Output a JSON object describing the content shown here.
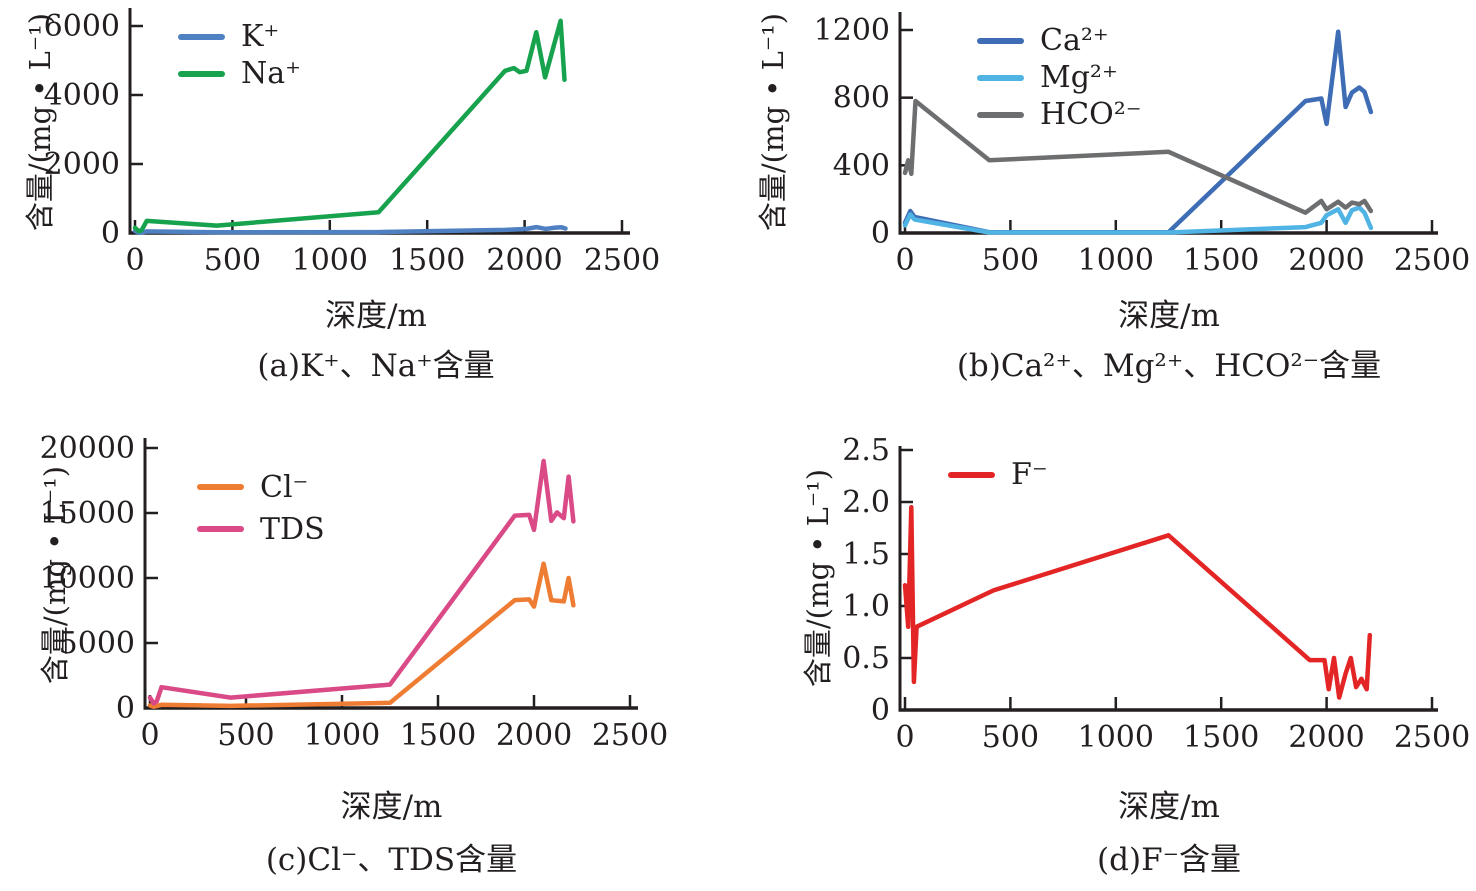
{
  "figure": {
    "background": "#ffffff",
    "axis_color": "#231f20",
    "description": "Four line charts of groundwater ion content versus depth"
  },
  "chart_data": [
    {
      "id": "a",
      "type": "line",
      "caption": "(a)K⁺、Na⁺含量",
      "xlabel": "深度/m",
      "ylabel": "含量/(mg • L⁻¹)",
      "xlim": [
        0,
        2500
      ],
      "xticks": [
        0,
        500,
        1000,
        1500,
        2000,
        2500
      ],
      "xticklabels": [
        "0",
        "500",
        "1000",
        "1500",
        "2000",
        "2500"
      ],
      "ylim": [
        0,
        6000
      ],
      "yticks": [
        0,
        2000,
        4000,
        6000
      ],
      "yticklabels": [
        "0",
        "2000",
        "4000",
        "6000"
      ],
      "grid": false,
      "legend_position": "upper-left-inside",
      "series": [
        {
          "name": "K⁺",
          "color": "#4f81c2",
          "x": [
            0,
            20,
            35,
            60,
            420,
            1250,
            1900,
            1975,
            2010,
            2060,
            2110,
            2150,
            2190,
            2210
          ],
          "y": [
            60,
            10,
            15,
            45,
            20,
            25,
            90,
            110,
            120,
            170,
            120,
            150,
            165,
            130
          ]
        },
        {
          "name": "Na⁺",
          "color": "#17a24e",
          "x": [
            0,
            20,
            35,
            60,
            420,
            1250,
            1900,
            1945,
            1975,
            2010,
            2060,
            2105,
            2185,
            2205
          ],
          "y": [
            150,
            50,
            90,
            350,
            215,
            600,
            4700,
            4780,
            4660,
            4700,
            5820,
            4510,
            6150,
            4440
          ]
        }
      ]
    },
    {
      "id": "b",
      "type": "line",
      "caption": "(b)Ca²⁺、Mg²⁺、HCO²⁻含量",
      "xlabel": "深度/m",
      "ylabel": "含量/(mg • L⁻¹)",
      "xlim": [
        0,
        2500
      ],
      "xticks": [
        0,
        500,
        1000,
        1500,
        2000,
        2500
      ],
      "xticklabels": [
        "0",
        "500",
        "1000",
        "1500",
        "2000",
        "2500"
      ],
      "ylim": [
        0,
        1200
      ],
      "yticks": [
        0,
        400,
        800,
        1200
      ],
      "yticklabels": [
        "0",
        "400",
        "800",
        "1200"
      ],
      "grid": false,
      "legend_position": "upper-left-inside",
      "series": [
        {
          "name": "Ca²⁺",
          "color": "#3e6db5",
          "x": [
            0,
            25,
            45,
            400,
            1250,
            1900,
            1975,
            2000,
            2055,
            2090,
            2120,
            2155,
            2180,
            2210
          ],
          "y": [
            60,
            130,
            95,
            5,
            5,
            780,
            795,
            645,
            1190,
            745,
            830,
            860,
            835,
            715
          ]
        },
        {
          "name": "Mg²⁺",
          "color": "#4fb3e4",
          "x": [
            0,
            25,
            45,
            400,
            1250,
            1900,
            1975,
            2000,
            2055,
            2090,
            2120,
            2155,
            2180,
            2210
          ],
          "y": [
            45,
            110,
            80,
            3,
            3,
            35,
            60,
            105,
            140,
            60,
            135,
            150,
            120,
            30
          ]
        },
        {
          "name": "HCO²⁻",
          "color": "#6d6e70",
          "x": [
            0,
            15,
            30,
            50,
            400,
            1250,
            1900,
            1975,
            2000,
            2055,
            2090,
            2120,
            2155,
            2180,
            2210
          ],
          "y": [
            355,
            430,
            350,
            780,
            430,
            480,
            120,
            190,
            140,
            185,
            150,
            180,
            170,
            190,
            130
          ]
        }
      ]
    },
    {
      "id": "c",
      "type": "line",
      "caption": "(c)Cl⁻、TDS含量",
      "xlabel": "深度/m",
      "ylabel": "含量/(mg • L⁻¹)",
      "xlim": [
        0,
        2500
      ],
      "xticks": [
        0,
        500,
        1000,
        1500,
        2000,
        2500
      ],
      "xticklabels": [
        "0",
        "500",
        "1000",
        "1500",
        "2000",
        "2500"
      ],
      "ylim": [
        0,
        20000
      ],
      "yticks": [
        0,
        5000,
        10000,
        15000,
        20000
      ],
      "yticklabels": [
        "0",
        "5000",
        "10000",
        "15000",
        "20000"
      ],
      "grid": false,
      "legend_position": "upper-left-inside",
      "series": [
        {
          "name": "Cl⁻",
          "color": "#ee7c33",
          "x": [
            0,
            20,
            35,
            60,
            420,
            1250,
            1900,
            1975,
            2000,
            2050,
            2090,
            2120,
            2155,
            2180,
            2205
          ],
          "y": [
            200,
            100,
            150,
            250,
            160,
            400,
            8300,
            8350,
            7800,
            11100,
            8300,
            8250,
            8200,
            10000,
            7900
          ]
        },
        {
          "name": "TDS",
          "color": "#d94a86",
          "x": [
            0,
            20,
            35,
            60,
            420,
            1250,
            1900,
            1975,
            2000,
            2050,
            2090,
            2120,
            2155,
            2180,
            2205
          ],
          "y": [
            800,
            350,
            500,
            1600,
            800,
            1800,
            14800,
            14850,
            13700,
            19000,
            14400,
            15050,
            14600,
            17800,
            14350
          ]
        }
      ]
    },
    {
      "id": "d",
      "type": "line",
      "caption": "(d)F⁻含量",
      "xlabel": "深度/m",
      "ylabel": "含量/(mg • L⁻¹)",
      "xlim": [
        0,
        2500
      ],
      "xticks": [
        0,
        500,
        1000,
        1500,
        2000,
        2500
      ],
      "xticklabels": [
        "0",
        "500",
        "1000",
        "1500",
        "2000",
        "2500"
      ],
      "ylim": [
        0,
        2.5
      ],
      "yticks": [
        0,
        0.5,
        1.0,
        1.5,
        2.0,
        2.5
      ],
      "yticklabels": [
        "0",
        "0.5",
        "1.0",
        "1.5",
        "2.0",
        "2.5"
      ],
      "grid": false,
      "legend_position": "upper-left-inside",
      "series": [
        {
          "name": "F⁻",
          "color": "#e32525",
          "x": [
            0,
            15,
            30,
            42,
            55,
            420,
            1250,
            1920,
            1990,
            2010,
            2035,
            2060,
            2090,
            2115,
            2140,
            2165,
            2190,
            2205
          ],
          "y": [
            1.2,
            0.8,
            1.95,
            0.27,
            0.8,
            1.15,
            1.68,
            0.48,
            0.48,
            0.2,
            0.5,
            0.12,
            0.35,
            0.5,
            0.22,
            0.3,
            0.2,
            0.72
          ]
        }
      ]
    }
  ]
}
